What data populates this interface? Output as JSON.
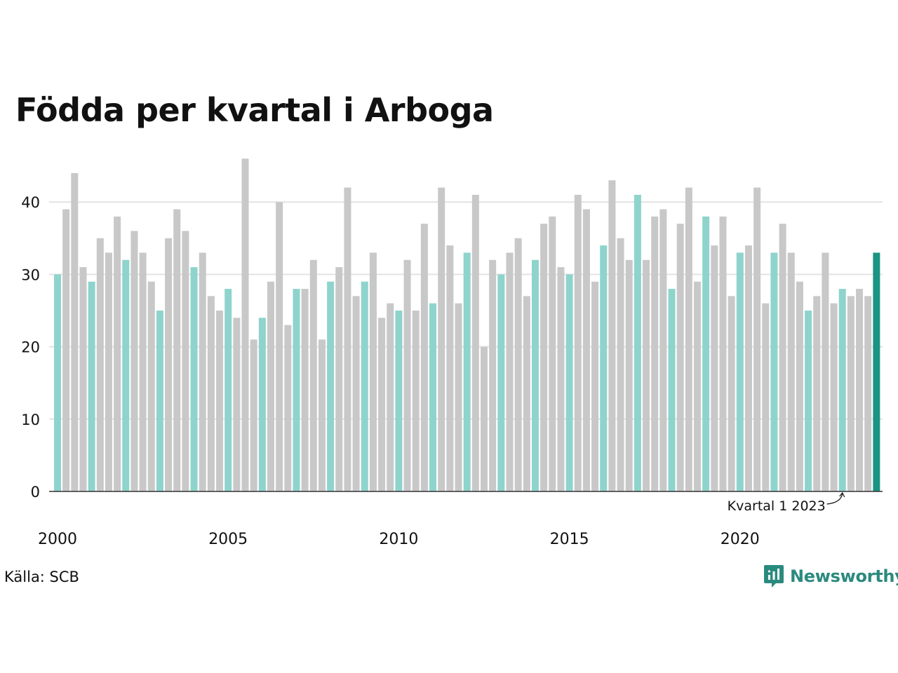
{
  "title": "Födda per kvartal i Arboga",
  "source": "Källa: SCB",
  "brand": {
    "name": "Newsworthy",
    "icon": "newsworthy-logo-icon",
    "color": "#2b8a7e"
  },
  "colors": {
    "highlight_q1": "#8ed4cc",
    "other": "#c8c8c8",
    "latest": "#1a9483",
    "grid": "#e3e3e3",
    "axis": "#333333"
  },
  "chart_data": {
    "type": "bar",
    "title": "Födda per kvartal i Arboga",
    "xlabel": "",
    "ylabel": "",
    "ylim": [
      0,
      46
    ],
    "yticks": [
      0,
      10,
      20,
      30,
      40
    ],
    "xtick_labels": [
      "2000",
      "2005",
      "2010",
      "2015",
      "2020"
    ],
    "grid": "horizontal",
    "start_year": 2000,
    "quarters_per_year": 4,
    "annotation": {
      "text": "Kvartal 1 2023",
      "target_year": 2023,
      "target_quarter": 1
    },
    "values": [
      30,
      39,
      44,
      31,
      29,
      35,
      33,
      38,
      32,
      36,
      33,
      29,
      25,
      35,
      39,
      36,
      31,
      33,
      27,
      25,
      28,
      24,
      46,
      21,
      24,
      29,
      40,
      23,
      28,
      28,
      32,
      21,
      29,
      31,
      42,
      27,
      29,
      33,
      24,
      26,
      25,
      32,
      25,
      37,
      26,
      42,
      34,
      26,
      33,
      41,
      20,
      32,
      30,
      33,
      35,
      27,
      32,
      37,
      38,
      31,
      30,
      41,
      39,
      29,
      34,
      43,
      35,
      32,
      41,
      32,
      38,
      39,
      28,
      37,
      42,
      29,
      38,
      34,
      38,
      27,
      33,
      34,
      42,
      26,
      33,
      37,
      33,
      29,
      25,
      27,
      33,
      26,
      28,
      27,
      28,
      27,
      33
    ]
  }
}
